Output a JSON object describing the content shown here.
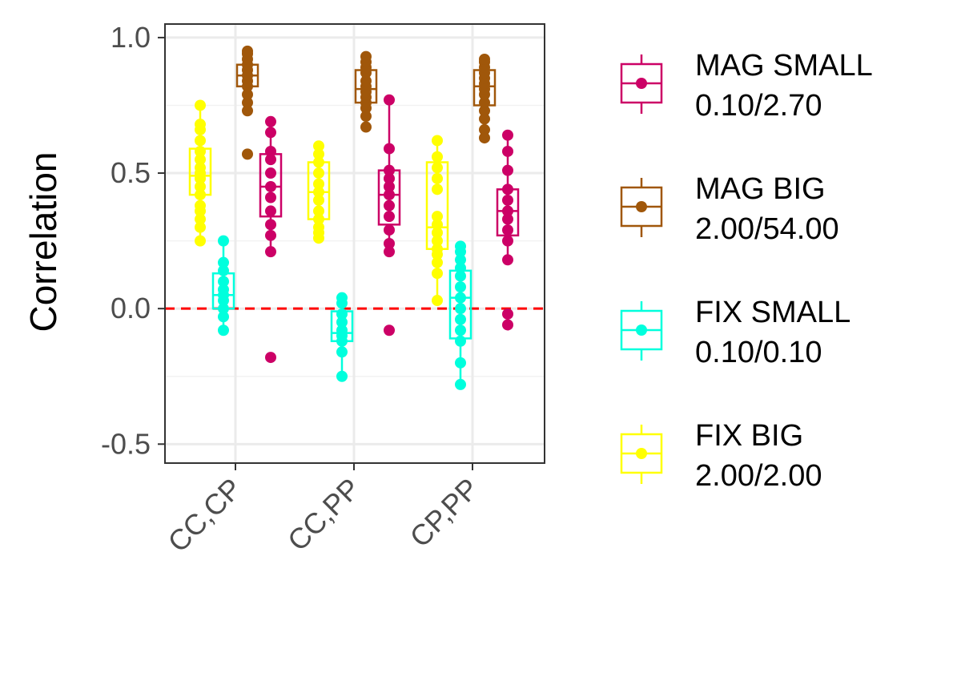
{
  "chart_data": {
    "type": "boxplot",
    "title": "",
    "xlabel": "",
    "ylabel": "Correlation",
    "ylim": [
      -0.57,
      1.05
    ],
    "yticks": [
      1.0,
      0.5,
      0.0,
      -0.5
    ],
    "ytick_labels": [
      "1.0",
      "0.5",
      "0.0",
      "-0.5"
    ],
    "categories": [
      "CC,CP",
      "CC,PP",
      "CP,PP"
    ],
    "reference_line": {
      "y": 0,
      "color": "#ff0000",
      "style": "dashed"
    },
    "grid": true,
    "legend_position": "right",
    "series": [
      {
        "key": "fix_big",
        "name": "FIX BIG",
        "sublabel": "2.00/2.00",
        "color": "#ffff00",
        "boxes": [
          {
            "q1": 0.42,
            "median": 0.49,
            "q3": 0.59,
            "whisker_low": 0.25,
            "whisker_high": 0.75,
            "points": [
              0.25,
              0.3,
              0.33,
              0.36,
              0.38,
              0.42,
              0.45,
              0.48,
              0.5,
              0.52,
              0.55,
              0.58,
              0.62,
              0.66,
              0.68,
              0.75
            ]
          },
          {
            "q1": 0.33,
            "median": 0.43,
            "q3": 0.54,
            "whisker_low": 0.26,
            "whisker_high": 0.6,
            "points": [
              0.26,
              0.28,
              0.3,
              0.33,
              0.36,
              0.4,
              0.43,
              0.46,
              0.5,
              0.54,
              0.57,
              0.6
            ]
          },
          {
            "q1": 0.22,
            "median": 0.3,
            "q3": 0.54,
            "whisker_low": 0.03,
            "whisker_high": 0.62,
            "points": [
              0.03,
              0.13,
              0.17,
              0.2,
              0.22,
              0.25,
              0.28,
              0.31,
              0.34,
              0.44,
              0.48,
              0.52,
              0.56,
              0.62
            ]
          }
        ]
      },
      {
        "key": "fix_small",
        "name": "FIX SMALL",
        "sublabel": "0.10/0.10",
        "color": "#00ffdd",
        "boxes": [
          {
            "q1": 0.0,
            "median": 0.05,
            "q3": 0.13,
            "whisker_low": -0.08,
            "whisker_high": 0.25,
            "points": [
              -0.08,
              -0.03,
              0.0,
              0.03,
              0.05,
              0.07,
              0.1,
              0.14,
              0.17,
              0.25
            ]
          },
          {
            "q1": -0.12,
            "median": -0.09,
            "q3": -0.01,
            "whisker_low": -0.25,
            "whisker_high": 0.04,
            "points": [
              -0.25,
              -0.16,
              -0.12,
              -0.1,
              -0.08,
              -0.05,
              -0.02,
              0.02,
              0.04
            ]
          },
          {
            "q1": -0.11,
            "median": 0.04,
            "q3": 0.14,
            "whisker_low": -0.28,
            "whisker_high": 0.23,
            "points": [
              -0.28,
              -0.2,
              -0.12,
              -0.08,
              -0.04,
              0.0,
              0.04,
              0.08,
              0.12,
              0.15,
              0.18,
              0.21,
              0.23
            ]
          }
        ]
      },
      {
        "key": "mag_big",
        "name": "MAG BIG",
        "sublabel": "2.00/54.00",
        "color": "#a0570a",
        "boxes": [
          {
            "q1": 0.82,
            "median": 0.86,
            "q3": 0.9,
            "whisker_low": 0.73,
            "whisker_high": 0.95,
            "points": [
              0.57,
              0.73,
              0.76,
              0.79,
              0.82,
              0.84,
              0.86,
              0.88,
              0.9,
              0.92,
              0.94,
              0.95
            ]
          },
          {
            "q1": 0.76,
            "median": 0.81,
            "q3": 0.88,
            "whisker_low": 0.67,
            "whisker_high": 0.93,
            "points": [
              0.67,
              0.71,
              0.74,
              0.76,
              0.78,
              0.8,
              0.82,
              0.84,
              0.87,
              0.89,
              0.91,
              0.93
            ]
          },
          {
            "q1": 0.75,
            "median": 0.82,
            "q3": 0.88,
            "whisker_low": 0.63,
            "whisker_high": 0.92,
            "points": [
              0.63,
              0.66,
              0.7,
              0.73,
              0.76,
              0.79,
              0.81,
              0.83,
              0.85,
              0.87,
              0.89,
              0.91,
              0.92
            ]
          }
        ]
      },
      {
        "key": "mag_small",
        "name": "MAG SMALL",
        "sublabel": "0.10/2.70",
        "color": "#cc0066",
        "boxes": [
          {
            "q1": 0.34,
            "median": 0.45,
            "q3": 0.57,
            "whisker_low": 0.21,
            "whisker_high": 0.69,
            "points": [
              -0.18,
              0.21,
              0.27,
              0.31,
              0.36,
              0.41,
              0.45,
              0.5,
              0.55,
              0.58,
              0.65,
              0.69
            ]
          },
          {
            "q1": 0.31,
            "median": 0.42,
            "q3": 0.51,
            "whisker_low": 0.21,
            "whisker_high": 0.77,
            "points": [
              -0.08,
              0.21,
              0.24,
              0.29,
              0.34,
              0.38,
              0.42,
              0.45,
              0.48,
              0.51,
              0.59,
              0.77
            ]
          },
          {
            "q1": 0.27,
            "median": 0.36,
            "q3": 0.44,
            "whisker_low": 0.18,
            "whisker_high": 0.64,
            "points": [
              -0.06,
              -0.02,
              0.18,
              0.25,
              0.29,
              0.33,
              0.36,
              0.4,
              0.44,
              0.51,
              0.58,
              0.64
            ]
          }
        ]
      }
    ],
    "legend_order": [
      "mag_small",
      "mag_big",
      "fix_small",
      "fix_big"
    ]
  }
}
